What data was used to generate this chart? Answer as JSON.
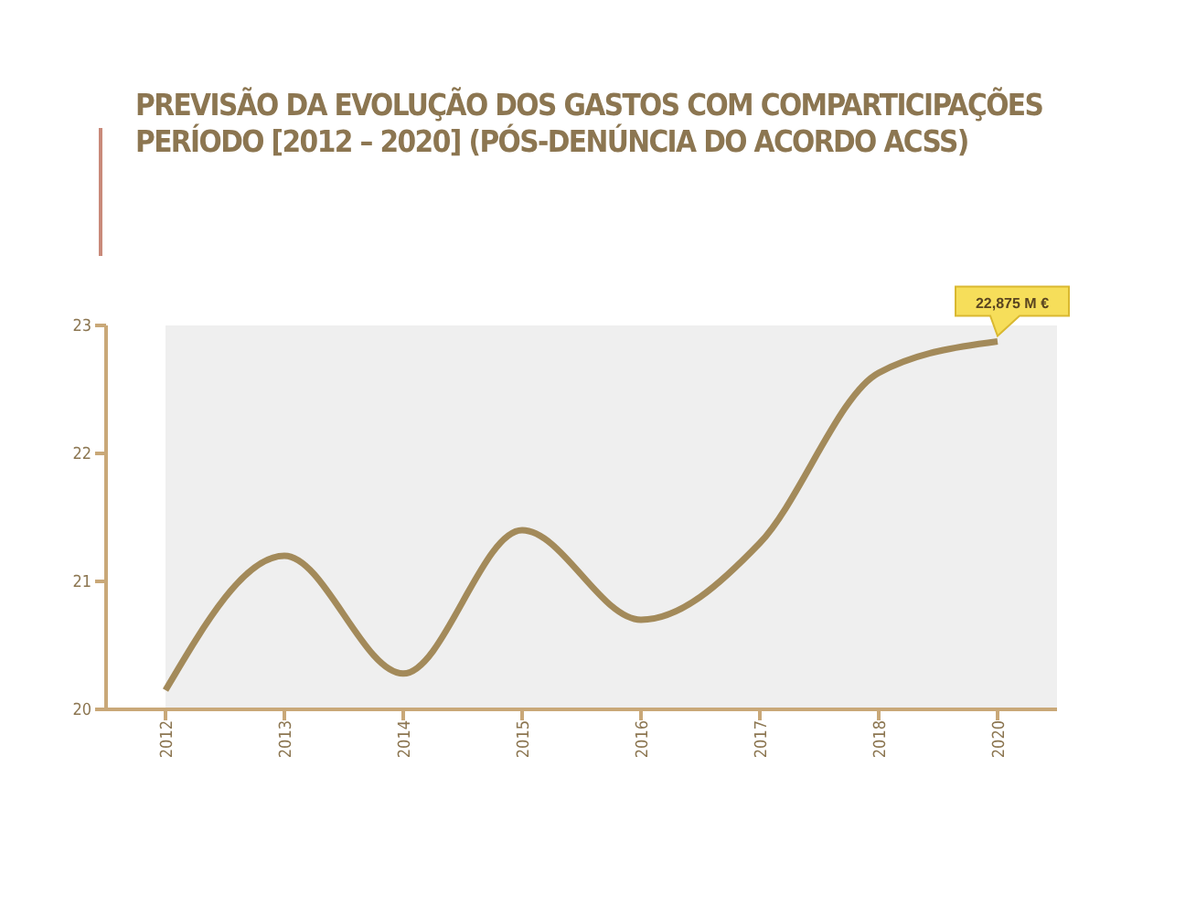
{
  "chart_data": {
    "type": "line",
    "title": "PREVISÃO DA EVOLUÇÃO DOS GASTOS COM COMPARTICIPAÇÕES",
    "subtitle": "PERÍODO [2012 – 2020] (PÓS-DENÚNCIA DO ACORDO ACSS)",
    "categories": [
      "2012",
      "2013",
      "2014",
      "2015",
      "2016",
      "2017",
      "2018",
      "2020"
    ],
    "series": [
      {
        "color": "#a38a5a",
        "values": [
          20.15,
          21.2,
          20.28,
          21.4,
          20.7,
          21.3,
          22.63,
          22.875
        ]
      }
    ],
    "ylim": [
      20,
      23
    ],
    "yticks": [
      20,
      21,
      22,
      23
    ],
    "grid": false,
    "legend": false,
    "marker": "none",
    "line_style": "solid",
    "annotations": [
      {
        "text": "22,875 M €",
        "x": "2020",
        "y": 22.875
      }
    ]
  }
}
